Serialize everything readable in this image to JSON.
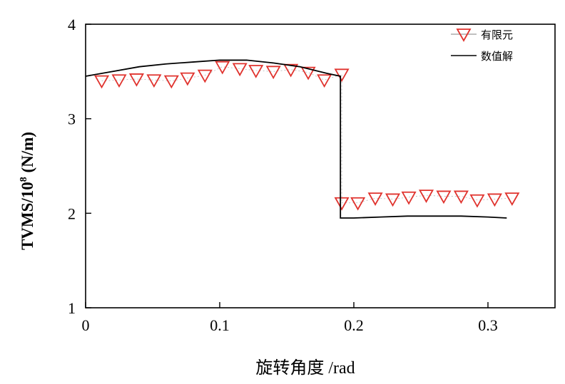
{
  "chart_data": {
    "type": "line",
    "xlabel": "旋转角度 /rad",
    "ylabel_main": "TVMS/10",
    "ylabel_exp": "8",
    "ylabel_unit": " (N/m)",
    "xlim": [
      0,
      0.35
    ],
    "ylim": [
      1,
      4
    ],
    "xticks": [
      {
        "value": 0,
        "label": "0"
      },
      {
        "value": 0.1,
        "label": "0.1"
      },
      {
        "value": 0.2,
        "label": "0.2"
      },
      {
        "value": 0.3,
        "label": "0.3"
      }
    ],
    "yticks": [
      {
        "value": 1,
        "label": "1"
      },
      {
        "value": 2,
        "label": "2"
      },
      {
        "value": 3,
        "label": "3"
      },
      {
        "value": 4,
        "label": "4"
      }
    ],
    "grid": false,
    "legend_position": "top-right",
    "series": [
      {
        "name": "有限元",
        "style": "marker",
        "marker": "triangle-down",
        "color": "#e0332e",
        "line_color": "#9a9a9a",
        "x": [
          0.012,
          0.025,
          0.038,
          0.051,
          0.064,
          0.076,
          0.089,
          0.102,
          0.115,
          0.127,
          0.14,
          0.153,
          0.166,
          0.178,
          0.191,
          0.191,
          0.203,
          0.216,
          0.229,
          0.241,
          0.254,
          0.267,
          0.28,
          0.292,
          0.305,
          0.318
        ],
        "y": [
          3.4,
          3.41,
          3.42,
          3.41,
          3.4,
          3.43,
          3.46,
          3.55,
          3.53,
          3.51,
          3.5,
          3.52,
          3.49,
          3.41,
          3.47,
          2.11,
          2.11,
          2.16,
          2.15,
          2.17,
          2.19,
          2.18,
          2.18,
          2.14,
          2.15,
          2.16
        ]
      },
      {
        "name": "数值解",
        "style": "line",
        "color": "#000000",
        "x": [
          0,
          0.02,
          0.04,
          0.06,
          0.08,
          0.1,
          0.12,
          0.14,
          0.16,
          0.18,
          0.19,
          0.19,
          0.2,
          0.22,
          0.24,
          0.26,
          0.28,
          0.3,
          0.314
        ],
        "y": [
          3.45,
          3.5,
          3.55,
          3.58,
          3.6,
          3.62,
          3.62,
          3.59,
          3.55,
          3.48,
          3.45,
          1.95,
          1.95,
          1.96,
          1.97,
          1.97,
          1.97,
          1.96,
          1.95
        ]
      }
    ]
  }
}
